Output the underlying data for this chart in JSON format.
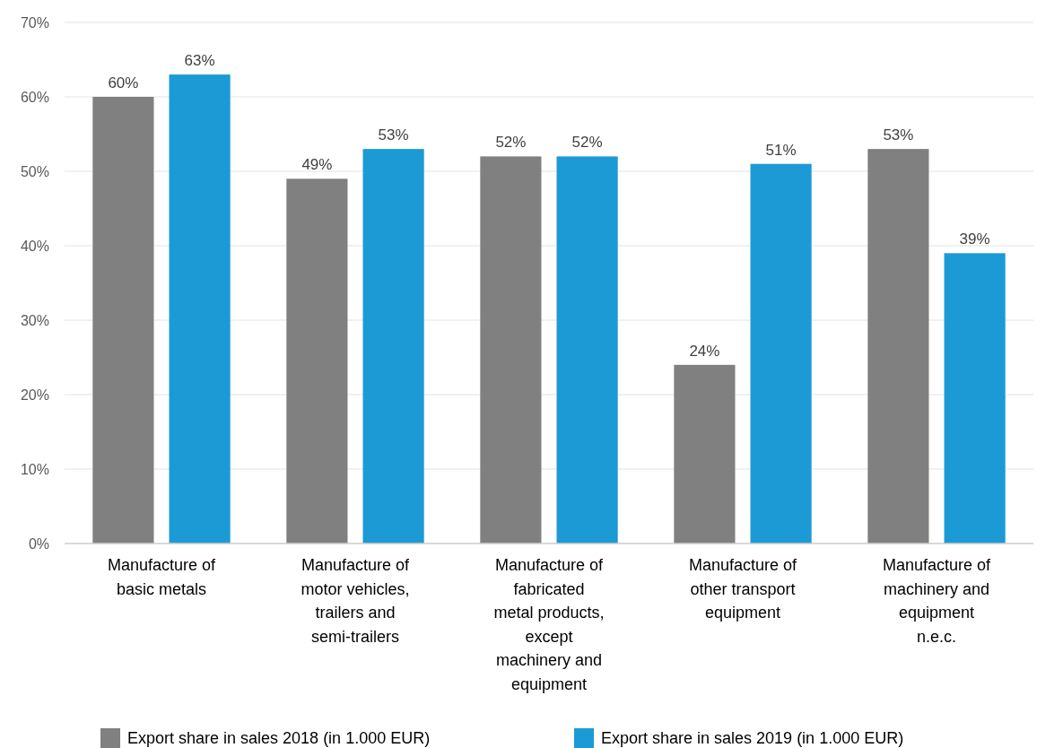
{
  "chart_data": {
    "type": "bar",
    "categories": [
      "Manufacture of basic metals",
      "Manufacture of motor vehicles, trailers and semi-trailers",
      "Manufacture of fabricated metal products, except machinery and equipment",
      "Manufacture of other transport equipment",
      "Manufacture of machinery and equipment n.e.c."
    ],
    "series": [
      {
        "name": "Export share in sales 2018 (in 1.000 EUR)",
        "color": "#808080",
        "values": [
          60,
          49,
          52,
          24,
          53
        ],
        "value_labels": [
          "60%",
          "49%",
          "52%",
          "24%",
          "53%"
        ]
      },
      {
        "name": "Export share in sales 2019 (in 1.000 EUR)",
        "color": "#1b9ad6",
        "values": [
          63,
          53,
          52,
          51,
          39
        ],
        "value_labels": [
          "63%",
          "53%",
          "52%",
          "51%",
          "39%"
        ]
      }
    ],
    "ylim": [
      0,
      70
    ],
    "yticks": [
      {
        "value": 0,
        "label": "0%"
      },
      {
        "value": 10,
        "label": "10%"
      },
      {
        "value": 20,
        "label": "20%"
      },
      {
        "value": 30,
        "label": "30%"
      },
      {
        "value": 40,
        "label": "40%"
      },
      {
        "value": 50,
        "label": "50%"
      },
      {
        "value": 60,
        "label": "60%"
      },
      {
        "value": 70,
        "label": "70%"
      }
    ],
    "grid": "y",
    "legend": "bottom"
  }
}
